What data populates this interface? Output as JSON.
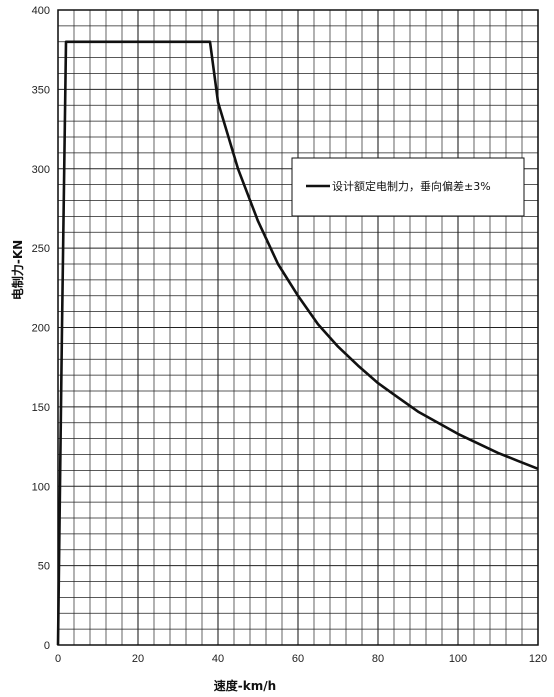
{
  "chart_data": {
    "type": "line",
    "title": "",
    "xlabel": "速度-km/h",
    "ylabel": "电制力-KN",
    "xlim": [
      0,
      120
    ],
    "ylim": [
      0,
      400
    ],
    "xticks": [
      0,
      20,
      40,
      60,
      80,
      100,
      120
    ],
    "yticks": [
      0,
      50,
      100,
      150,
      200,
      250,
      300,
      350,
      400
    ],
    "grid": true,
    "legend_position": "upper-right",
    "series": [
      {
        "name": "设计额定电制力，垂向偏差±3%",
        "color": "#111111",
        "x": [
          0,
          1,
          2,
          10,
          20,
          30,
          38,
          40,
          45,
          50,
          55,
          60,
          65,
          70,
          75,
          80,
          85,
          90,
          95,
          100,
          105,
          110,
          115,
          120
        ],
        "y": [
          0,
          200,
          380,
          380,
          380,
          380,
          380,
          342,
          300,
          267,
          240,
          220,
          202,
          188,
          176,
          165,
          156,
          147,
          140,
          133,
          127,
          121,
          116,
          111
        ]
      }
    ]
  }
}
